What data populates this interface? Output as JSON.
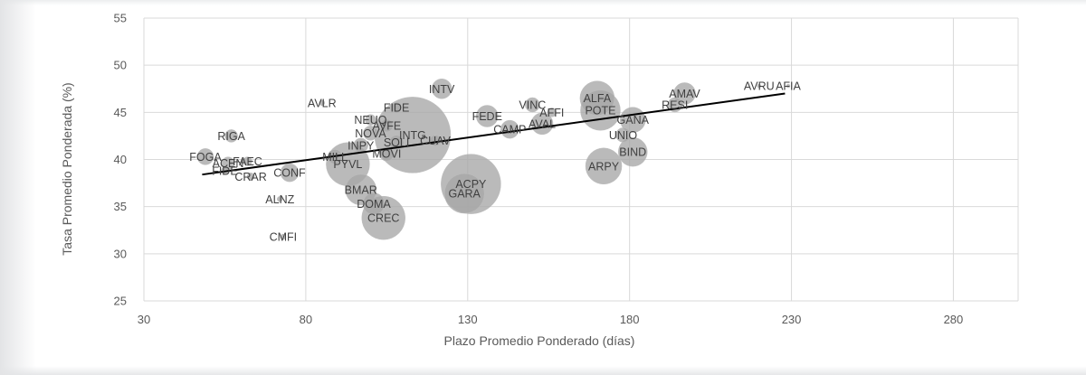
{
  "chart_data": {
    "type": "scatter",
    "title": "",
    "xlabel": "Plazo Promedio Ponderado (días)",
    "ylabel": "Tasa Promedio Ponderada (%)",
    "xlim": [
      30,
      300
    ],
    "ylim": [
      25,
      55
    ],
    "xticks": [
      30,
      80,
      130,
      180,
      230,
      280
    ],
    "yticks": [
      25,
      30,
      35,
      40,
      45,
      50,
      55
    ],
    "grid": "vertical and horizontal",
    "legend": "none",
    "colors": {
      "bubble": "#a6a6a6",
      "trend": "#000000",
      "grid": "#d9d9d9"
    },
    "trendline": {
      "x": [
        48,
        228
      ],
      "y": [
        38.4,
        47.0
      ]
    },
    "points": [
      {
        "label": "AVLR",
        "x": 85,
        "y": 46.0,
        "size": 3
      },
      {
        "label": "RIGA",
        "x": 57,
        "y": 42.5,
        "size": 7
      },
      {
        "label": "FOGA",
        "x": 49,
        "y": 40.3,
        "size": 9
      },
      {
        "label": "ACEN",
        "x": 56,
        "y": 39.6,
        "size": 7
      },
      {
        "label": "FAEC",
        "x": 62,
        "y": 39.8,
        "size": 5
      },
      {
        "label": "FIDE",
        "x": 55,
        "y": 38.8,
        "size": 4
      },
      {
        "label": "CRAR",
        "x": 63,
        "y": 38.2,
        "size": 4
      },
      {
        "label": "CONF",
        "x": 75,
        "y": 38.6,
        "size": 10
      },
      {
        "label": "ALNZ",
        "x": 72,
        "y": 35.8,
        "size": 3
      },
      {
        "label": "CMFI",
        "x": 73,
        "y": 31.8,
        "size": 3
      },
      {
        "label": "MILL",
        "x": 89,
        "y": 40.3,
        "size": 8
      },
      {
        "label": "PYVL",
        "x": 93,
        "y": 39.5,
        "size": 24
      },
      {
        "label": "INPY",
        "x": 97,
        "y": 41.5,
        "size": 8
      },
      {
        "label": "NOVA",
        "x": 100,
        "y": 42.8,
        "size": 8
      },
      {
        "label": "NEUQ",
        "x": 100,
        "y": 44.2,
        "size": 6
      },
      {
        "label": "AVFE",
        "x": 105,
        "y": 43.6,
        "size": 7
      },
      {
        "label": "FIDE",
        "x": 108,
        "y": 45.5,
        "size": 6
      },
      {
        "label": "INTG",
        "x": 113,
        "y": 42.6,
        "size": 42
      },
      {
        "label": "SOLI",
        "x": 108,
        "y": 41.8,
        "size": 8
      },
      {
        "label": "MOVI",
        "x": 105,
        "y": 40.6,
        "size": 8
      },
      {
        "label": "CUAV",
        "x": 120,
        "y": 42.0,
        "size": 6
      },
      {
        "label": "INTV",
        "x": 122,
        "y": 47.5,
        "size": 11
      },
      {
        "label": "BMAR",
        "x": 97,
        "y": 36.8,
        "size": 17
      },
      {
        "label": "DOMA",
        "x": 101,
        "y": 35.3,
        "size": 12
      },
      {
        "label": "CREC",
        "x": 104,
        "y": 33.8,
        "size": 24
      },
      {
        "label": "ACPY",
        "x": 131,
        "y": 37.4,
        "size": 33
      },
      {
        "label": "GARA",
        "x": 129,
        "y": 36.4,
        "size": 22
      },
      {
        "label": "FEDE",
        "x": 136,
        "y": 44.6,
        "size": 12
      },
      {
        "label": "CAMP",
        "x": 143,
        "y": 43.2,
        "size": 10
      },
      {
        "label": "VINC",
        "x": 150,
        "y": 45.8,
        "size": 8
      },
      {
        "label": "AVAL",
        "x": 153,
        "y": 43.8,
        "size": 12
      },
      {
        "label": "AFFI",
        "x": 156,
        "y": 45.0,
        "size": 5
      },
      {
        "label": "ALFA",
        "x": 170,
        "y": 46.5,
        "size": 19
      },
      {
        "label": "POTE",
        "x": 171,
        "y": 45.2,
        "size": 22
      },
      {
        "label": "GANA",
        "x": 181,
        "y": 44.2,
        "size": 14
      },
      {
        "label": "UNIO",
        "x": 178,
        "y": 42.6,
        "size": 8
      },
      {
        "label": "BIND",
        "x": 181,
        "y": 40.8,
        "size": 16
      },
      {
        "label": "ARPY",
        "x": 172,
        "y": 39.3,
        "size": 20
      },
      {
        "label": "AMAV",
        "x": 197,
        "y": 47.0,
        "size": 12
      },
      {
        "label": "RESI",
        "x": 194,
        "y": 45.8,
        "size": 8
      },
      {
        "label": "AVRU",
        "x": 220,
        "y": 47.8,
        "size": 2
      },
      {
        "label": "AFIA",
        "x": 229,
        "y": 47.8,
        "size": 2
      }
    ]
  }
}
